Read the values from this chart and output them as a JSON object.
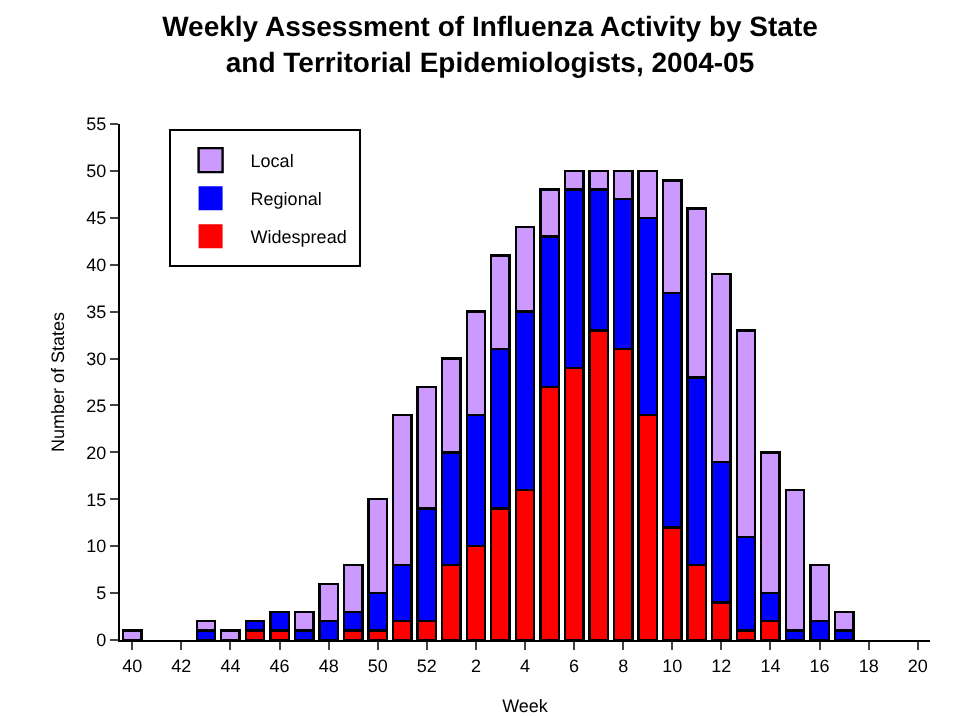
{
  "chart_data": {
    "type": "bar",
    "title": "Weekly Assessment of Influenza Activity by State and Territorial Epidemiologists, 2004-05",
    "xlabel": "Week",
    "ylabel": "Number of States",
    "stacked": true,
    "legend": "top left",
    "grid": false,
    "categories": [
      "40",
      null,
      "42",
      null,
      "44",
      null,
      "46",
      null,
      "48",
      null,
      "50",
      null,
      "52",
      null,
      "2",
      null,
      "4",
      null,
      "6",
      null,
      "8",
      null,
      "10",
      null,
      "12",
      null,
      "14",
      null,
      "16",
      null,
      "18",
      null,
      "20"
    ],
    "ylim": [
      0,
      55
    ],
    "yticks": [
      0,
      5,
      10,
      15,
      20,
      25,
      30,
      35,
      40,
      45,
      50,
      55
    ],
    "series": [
      {
        "name": "Widespread",
        "color": "#ff0000",
        "values": [
          0,
          0,
          0,
          0,
          0,
          1,
          1,
          0,
          0,
          1,
          1,
          2,
          2,
          8,
          10,
          14,
          16,
          27,
          29,
          33,
          31,
          24,
          12,
          8,
          4,
          1,
          2,
          0,
          0,
          0,
          0,
          0,
          0
        ]
      },
      {
        "name": "Regional",
        "color": "#0000ff",
        "values": [
          0,
          0,
          0,
          1,
          0,
          1,
          2,
          1,
          2,
          2,
          4,
          6,
          12,
          12,
          14,
          17,
          19,
          16,
          19,
          15,
          16,
          21,
          25,
          20,
          15,
          10,
          3,
          1,
          2,
          1,
          0,
          0,
          0
        ]
      },
      {
        "name": "Local",
        "color": "#cc99ff",
        "values": [
          1,
          0,
          0,
          1,
          1,
          0,
          0,
          2,
          4,
          5,
          10,
          16,
          13,
          10,
          11,
          10,
          9,
          5,
          2,
          2,
          3,
          5,
          12,
          18,
          20,
          22,
          15,
          15,
          6,
          2,
          0,
          0,
          0
        ]
      }
    ]
  }
}
